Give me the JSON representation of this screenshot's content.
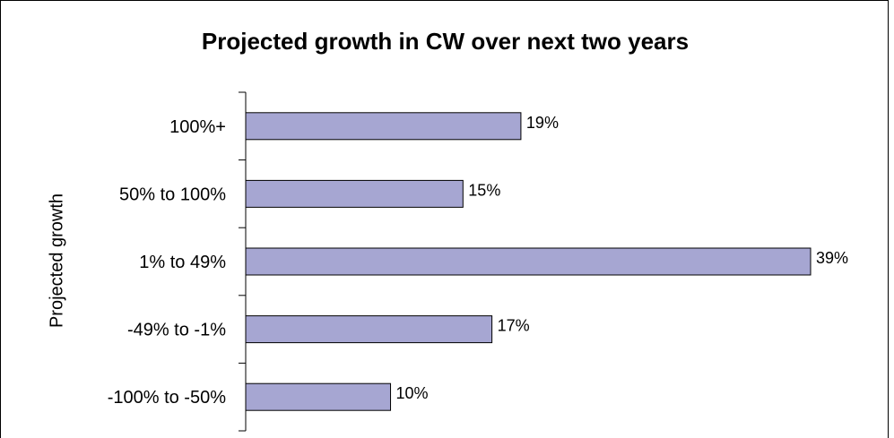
{
  "chart_data": {
    "type": "bar",
    "orientation": "horizontal",
    "title": "Projected growth in CW over next two years",
    "ylabel": "Projected growth",
    "xlabel": "",
    "categories": [
      "100%+",
      "50% to 100%",
      "1% to 49%",
      "-49% to -1%",
      "-100% to -50%"
    ],
    "values": [
      19,
      15,
      39,
      17,
      10
    ],
    "value_labels": [
      "19%",
      "15%",
      "39%",
      "17%",
      "10%"
    ],
    "xlim": [
      0,
      42
    ],
    "grid": false,
    "colors": {
      "bar_fill": "#a6a6d2",
      "bar_stroke": "#000000"
    }
  }
}
